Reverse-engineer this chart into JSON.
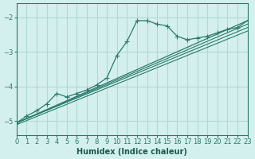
{
  "xlabel": "Humidex (Indice chaleur)",
  "ylabel": "",
  "background_color": "#d4f0ee",
  "grid_color": "#b0d8d4",
  "line_color": "#2a7a6a",
  "xlim": [
    0,
    23
  ],
  "ylim": [
    -5.4,
    -1.6
  ],
  "yticks": [
    -5,
    -4,
    -3,
    -2
  ],
  "xticks": [
    0,
    1,
    2,
    3,
    4,
    5,
    6,
    7,
    8,
    9,
    10,
    11,
    12,
    13,
    14,
    15,
    16,
    17,
    18,
    19,
    20,
    21,
    22,
    23
  ],
  "curve1_x": [
    0,
    1,
    2,
    3,
    4,
    5,
    6,
    7,
    8,
    9,
    10,
    11,
    12,
    13,
    14,
    15,
    16,
    17,
    18,
    19,
    20,
    21,
    22,
    23
  ],
  "curve1_y": [
    -5.05,
    -4.85,
    -4.7,
    -4.5,
    -4.2,
    -4.3,
    -4.2,
    -4.1,
    -3.95,
    -3.75,
    -3.1,
    -2.7,
    -2.1,
    -2.1,
    -2.2,
    -2.25,
    -2.55,
    -2.65,
    -2.6,
    -2.55,
    -2.45,
    -2.35,
    -2.3,
    -2.1
  ],
  "line_x": [
    0,
    23
  ],
  "line_y": [
    -5.05,
    -2.1
  ],
  "extra_lines": [
    {
      "x": [
        0,
        23
      ],
      "y": [
        -5.05,
        -2.2
      ]
    },
    {
      "x": [
        0,
        23
      ],
      "y": [
        -5.05,
        -2.3
      ]
    },
    {
      "x": [
        0,
        23
      ],
      "y": [
        -5.1,
        -2.4
      ]
    }
  ]
}
